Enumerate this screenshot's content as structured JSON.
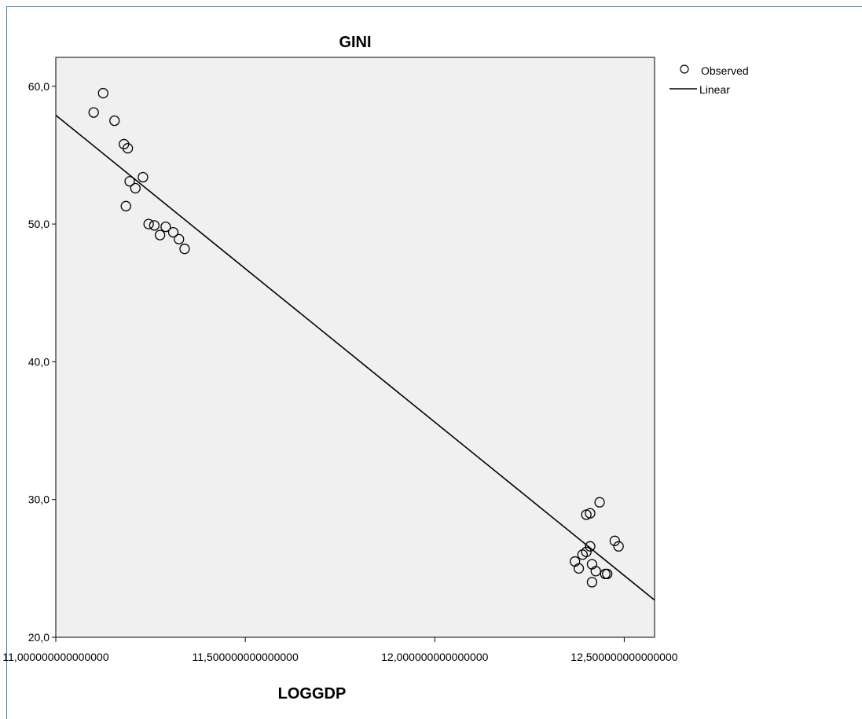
{
  "chart_data": {
    "type": "scatter",
    "title": "GINI",
    "xlabel": "LOGGDP",
    "ylabel": "",
    "xlim": [
      11.0,
      12.58
    ],
    "ylim": [
      20,
      62.1
    ],
    "x_ticks": [
      {
        "value": 11.0,
        "label": "11,000000000000000"
      },
      {
        "value": 11.5,
        "label": "11,500000000000000"
      },
      {
        "value": 12.0,
        "label": "12,000000000000000"
      },
      {
        "value": 12.5,
        "label": "12,500000000000000"
      }
    ],
    "y_ticks": [
      {
        "value": 20,
        "label": "20,0"
      },
      {
        "value": 30,
        "label": "30,0"
      },
      {
        "value": 40,
        "label": "40,0"
      },
      {
        "value": 50,
        "label": "50,0"
      },
      {
        "value": 60,
        "label": "60,0"
      }
    ],
    "legend_position": "top-right",
    "series": [
      {
        "name": "Observed",
        "kind": "points",
        "x": [
          11.1,
          11.125,
          11.155,
          11.18,
          11.19,
          11.195,
          11.21,
          11.23,
          11.185,
          11.245,
          11.26,
          11.275,
          11.29,
          11.31,
          11.325,
          11.34,
          12.37,
          12.38,
          12.39,
          12.4,
          12.41,
          12.415,
          12.425,
          12.45,
          12.455,
          12.415,
          12.4,
          12.41,
          12.435,
          12.475,
          12.485
        ],
        "y": [
          58.1,
          59.5,
          57.5,
          55.8,
          55.5,
          53.1,
          52.6,
          53.4,
          51.3,
          50.0,
          49.9,
          49.2,
          49.8,
          49.4,
          48.9,
          48.2,
          25.5,
          25.0,
          26.0,
          26.2,
          26.6,
          25.3,
          24.8,
          24.6,
          24.6,
          24.0,
          28.9,
          29.0,
          29.8,
          27.0,
          26.6
        ]
      },
      {
        "name": "Linear",
        "kind": "line",
        "x": [
          11.0,
          12.58
        ],
        "y": [
          57.9,
          22.7
        ]
      }
    ]
  },
  "colors": {
    "plot_background": "#f0f0f0",
    "frame_border": "#4a7ebb",
    "axis": "#000000",
    "marker_stroke": "#000000",
    "line": "#000000"
  }
}
